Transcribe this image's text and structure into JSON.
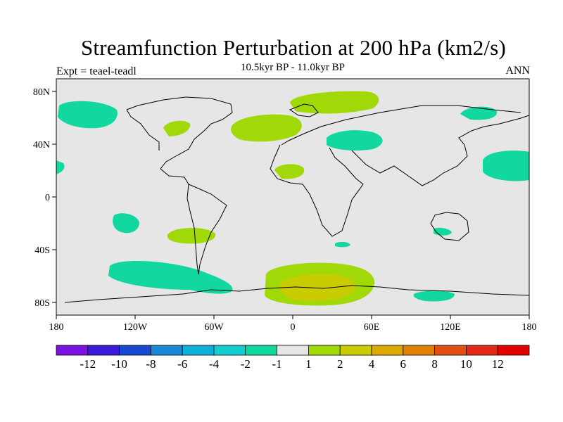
{
  "plot": {
    "title": "Streamfunction Perturbation at 200 hPa (km2/s)",
    "subtitle": "10.5kyr BP - 11.0kyr BP",
    "left_string": "Expt = teael-teadl",
    "right_string": "ANN"
  },
  "axes": {
    "x_ticks": [
      "180",
      "120W",
      "60W",
      "0",
      "60E",
      "120E",
      "180"
    ],
    "y_ticks": [
      "80N",
      "40N",
      "0",
      "40S",
      "80S"
    ]
  },
  "colorbar": {
    "labels": [
      "-12",
      "-10",
      "-8",
      "-6",
      "-4",
      "-2",
      "-1",
      "1",
      "2",
      "4",
      "6",
      "8",
      "10",
      "12"
    ],
    "colors": [
      "#7a12e0",
      "#3c18d8",
      "#1848d0",
      "#1a86d6",
      "#10b0d8",
      "#12ccd0",
      "#12d8a0",
      "#e6e6e6",
      "#a0d808",
      "#c8cc00",
      "#dcaa00",
      "#e08000",
      "#e05010",
      "#e02818",
      "#e00000"
    ]
  },
  "map_colors": {
    "ocean_land": "#e6e6e6",
    "neg_1_2": "#12d8a0",
    "pos_1_2": "#a0d808",
    "pos_2_4": "#c8cc00"
  }
}
